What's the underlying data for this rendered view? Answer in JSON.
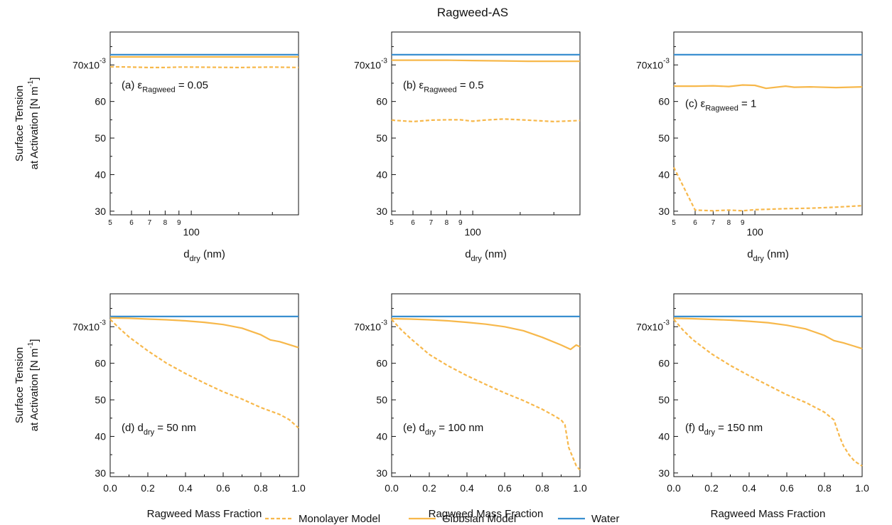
{
  "figure": {
    "title": "Ragweed-AS",
    "y_label_line1": "Surface Tension",
    "y_label_line2": "at Activation [N m",
    "y_label_sup": "-1",
    "y_label_close": "]",
    "y_exp_prefix": "70x10",
    "y_exp_sup": "-3"
  },
  "legend": {
    "monolayer": "Monolayer Model",
    "gibbsian": "Gibbsian Model",
    "water": "Water"
  },
  "colors": {
    "orange": "#F7B84B",
    "blue": "#3A8FD0",
    "axis": "#111111"
  },
  "chart_data": [
    {
      "type": "line",
      "panel": "a",
      "annotation": {
        "prefix": "(a) ",
        "sym": "ε",
        "sub": "Ragweed",
        "suffix": " = 0.05"
      },
      "xlabel": {
        "main": "d",
        "sub": "dry",
        "suffix": " (nm)"
      },
      "xscale": "log",
      "xlim": [
        50,
        250
      ],
      "ylim": [
        29,
        79
      ],
      "yticks": [
        30,
        40,
        50,
        60,
        70
      ],
      "ytick_labels": [
        "30",
        "40",
        "50",
        "60",
        "70x10-3"
      ],
      "xticks": [
        50,
        60,
        70,
        80,
        90,
        100
      ],
      "xtick_labels": [
        "5",
        "6",
        "7",
        "8",
        "9",
        "100"
      ],
      "series": [
        {
          "name": "Water",
          "style": "solid",
          "color": "#3A8FD0",
          "x": [
            50,
            250
          ],
          "y": [
            72.8,
            72.8
          ]
        },
        {
          "name": "Gibbsian Model",
          "style": "solid",
          "color": "#F7B84B",
          "x": [
            50,
            100,
            150,
            200,
            250
          ],
          "y": [
            72.2,
            72.2,
            72.2,
            72.2,
            72.2
          ]
        },
        {
          "name": "Monolayer Model",
          "style": "dashed",
          "color": "#F7B84B",
          "x": [
            50,
            60,
            70,
            80,
            90,
            100,
            150,
            200,
            250
          ],
          "y": [
            69.5,
            69.4,
            69.3,
            69.3,
            69.4,
            69.4,
            69.3,
            69.4,
            69.3
          ]
        }
      ]
    },
    {
      "type": "line",
      "panel": "b",
      "annotation": {
        "prefix": "(b) ",
        "sym": "ε",
        "sub": "Ragweed",
        "suffix": " = 0.5"
      },
      "xlabel": {
        "main": "d",
        "sub": "dry",
        "suffix": " (nm)"
      },
      "xscale": "log",
      "xlim": [
        50,
        250
      ],
      "ylim": [
        29,
        79
      ],
      "yticks": [
        30,
        40,
        50,
        60,
        70
      ],
      "ytick_labels": [
        "30",
        "40",
        "50",
        "60",
        "70x10-3"
      ],
      "xticks": [
        50,
        60,
        70,
        80,
        90,
        100
      ],
      "xtick_labels": [
        "5",
        "6",
        "7",
        "8",
        "9",
        "100"
      ],
      "series": [
        {
          "name": "Water",
          "style": "solid",
          "color": "#3A8FD0",
          "x": [
            50,
            250
          ],
          "y": [
            72.8,
            72.8
          ]
        },
        {
          "name": "Gibbsian Model",
          "style": "solid",
          "color": "#F7B84B",
          "x": [
            50,
            80,
            100,
            130,
            160,
            200,
            250
          ],
          "y": [
            71.3,
            71.3,
            71.2,
            71.1,
            71.0,
            71.0,
            71.0
          ]
        },
        {
          "name": "Monolayer Model",
          "style": "dashed",
          "color": "#F7B84B",
          "x": [
            50,
            60,
            70,
            80,
            90,
            100,
            110,
            130,
            160,
            200,
            250
          ],
          "y": [
            54.9,
            54.5,
            54.9,
            55.0,
            55.0,
            54.6,
            54.9,
            55.2,
            54.9,
            54.5,
            54.8
          ]
        }
      ]
    },
    {
      "type": "line",
      "panel": "c",
      "annotation": {
        "prefix": "(c) ",
        "sym": "ε",
        "sub": "Ragweed",
        "suffix": " = 1"
      },
      "xlabel": {
        "main": "d",
        "sub": "dry",
        "suffix": " (nm)"
      },
      "xscale": "log",
      "xlim": [
        50,
        250
      ],
      "ylim": [
        29,
        79
      ],
      "yticks": [
        30,
        40,
        50,
        60,
        70
      ],
      "ytick_labels": [
        "30",
        "40",
        "50",
        "60",
        "70x10-3"
      ],
      "xticks": [
        50,
        60,
        70,
        80,
        90,
        100
      ],
      "xtick_labels": [
        "5",
        "6",
        "7",
        "8",
        "9",
        "100"
      ],
      "series": [
        {
          "name": "Water",
          "style": "solid",
          "color": "#3A8FD0",
          "x": [
            50,
            250
          ],
          "y": [
            72.8,
            72.8
          ]
        },
        {
          "name": "Gibbsian Model",
          "style": "solid",
          "color": "#F7B84B",
          "x": [
            50,
            60,
            70,
            80,
            90,
            100,
            110,
            130,
            140,
            160,
            200,
            250
          ],
          "y": [
            64.2,
            64.2,
            64.3,
            64.1,
            64.5,
            64.4,
            63.6,
            64.2,
            63.9,
            64.0,
            63.8,
            64.0
          ]
        },
        {
          "name": "Monolayer Model",
          "style": "dashed",
          "color": "#F7B84B",
          "x": [
            50,
            60,
            70,
            80,
            90,
            100,
            130,
            160,
            200,
            250
          ],
          "y": [
            42.0,
            30.3,
            30.1,
            30.3,
            30.1,
            30.4,
            30.7,
            30.8,
            31.1,
            31.5
          ]
        }
      ]
    },
    {
      "type": "line",
      "panel": "d",
      "annotation": {
        "prefix": "(d) ",
        "main": "d",
        "sub": "dry",
        "suffix": " = 50 nm"
      },
      "xlabel": {
        "main": "Ragweed Mass Fraction",
        "sub": "",
        "suffix": ""
      },
      "xscale": "linear",
      "xlim": [
        0,
        1
      ],
      "ylim": [
        29,
        79
      ],
      "yticks": [
        30,
        40,
        50,
        60,
        70
      ],
      "ytick_labels": [
        "30",
        "40",
        "50",
        "60",
        "70x10-3"
      ],
      "xticks": [
        0,
        0.2,
        0.4,
        0.6,
        0.8,
        1.0
      ],
      "xtick_labels": [
        "0.0",
        "0.2",
        "0.4",
        "0.6",
        "0.8",
        "1.0"
      ],
      "series": [
        {
          "name": "Water",
          "style": "solid",
          "color": "#3A8FD0",
          "x": [
            0,
            1
          ],
          "y": [
            72.8,
            72.8
          ]
        },
        {
          "name": "Gibbsian Model",
          "style": "solid",
          "color": "#F7B84B",
          "x": [
            0,
            0.1,
            0.2,
            0.3,
            0.4,
            0.5,
            0.6,
            0.7,
            0.8,
            0.85,
            0.9,
            0.95,
            1.0
          ],
          "y": [
            72.4,
            72.3,
            72.1,
            71.9,
            71.6,
            71.2,
            70.6,
            69.6,
            67.8,
            66.4,
            65.9,
            65.1,
            64.3
          ]
        },
        {
          "name": "Monolayer Model",
          "style": "dashed",
          "color": "#F7B84B",
          "x": [
            0,
            0.05,
            0.1,
            0.2,
            0.3,
            0.4,
            0.5,
            0.6,
            0.7,
            0.8,
            0.9,
            0.95,
            1.0
          ],
          "y": [
            72.0,
            69.5,
            67.2,
            63.4,
            60.0,
            57.2,
            54.6,
            52.2,
            50.2,
            47.9,
            46.0,
            44.6,
            42.3
          ]
        }
      ]
    },
    {
      "type": "line",
      "panel": "e",
      "annotation": {
        "prefix": "(e) ",
        "main": "d",
        "sub": "dry",
        "suffix": " = 100 nm"
      },
      "xlabel": {
        "main": "Ragweed Mass Fraction",
        "sub": "",
        "suffix": ""
      },
      "xscale": "linear",
      "xlim": [
        0,
        1
      ],
      "ylim": [
        29,
        79
      ],
      "yticks": [
        30,
        40,
        50,
        60,
        70
      ],
      "ytick_labels": [
        "30",
        "40",
        "50",
        "60",
        "70x10-3"
      ],
      "xticks": [
        0,
        0.2,
        0.4,
        0.6,
        0.8,
        1.0
      ],
      "xtick_labels": [
        "0.0",
        "0.2",
        "0.4",
        "0.6",
        "0.8",
        "1.0"
      ],
      "series": [
        {
          "name": "Water",
          "style": "solid",
          "color": "#3A8FD0",
          "x": [
            0,
            1
          ],
          "y": [
            72.8,
            72.8
          ]
        },
        {
          "name": "Gibbsian Model",
          "style": "solid",
          "color": "#F7B84B",
          "x": [
            0,
            0.1,
            0.2,
            0.3,
            0.4,
            0.5,
            0.6,
            0.7,
            0.8,
            0.9,
            0.95,
            0.98,
            1.0
          ],
          "y": [
            72.2,
            72.1,
            71.9,
            71.6,
            71.2,
            70.7,
            70.0,
            68.9,
            67.1,
            65.0,
            63.8,
            65.0,
            64.5
          ]
        },
        {
          "name": "Monolayer Model",
          "style": "dashed",
          "color": "#F7B84B",
          "x": [
            0,
            0.05,
            0.1,
            0.2,
            0.3,
            0.4,
            0.5,
            0.6,
            0.7,
            0.8,
            0.85,
            0.9,
            0.92,
            0.94,
            0.96,
            0.98,
            1.0
          ],
          "y": [
            72.0,
            69.2,
            66.8,
            62.4,
            59.3,
            56.6,
            54.2,
            51.9,
            49.8,
            47.4,
            46.0,
            44.5,
            43.2,
            37.0,
            34.5,
            32.0,
            30.8
          ]
        }
      ]
    },
    {
      "type": "line",
      "panel": "f",
      "annotation": {
        "prefix": "(f) ",
        "main": "d",
        "sub": "dry",
        "suffix": " = 150 nm"
      },
      "xlabel": {
        "main": "Ragweed Mass Fraction",
        "sub": "",
        "suffix": ""
      },
      "xscale": "linear",
      "xlim": [
        0,
        1
      ],
      "ylim": [
        29,
        79
      ],
      "yticks": [
        30,
        40,
        50,
        60,
        70
      ],
      "ytick_labels": [
        "30",
        "40",
        "50",
        "60",
        "70x10-3"
      ],
      "xticks": [
        0,
        0.2,
        0.4,
        0.6,
        0.8,
        1.0
      ],
      "xtick_labels": [
        "0.0",
        "0.2",
        "0.4",
        "0.6",
        "0.8",
        "1.0"
      ],
      "series": [
        {
          "name": "Water",
          "style": "solid",
          "color": "#3A8FD0",
          "x": [
            0,
            1
          ],
          "y": [
            72.8,
            72.8
          ]
        },
        {
          "name": "Gibbsian Model",
          "style": "solid",
          "color": "#F7B84B",
          "x": [
            0,
            0.1,
            0.2,
            0.3,
            0.4,
            0.5,
            0.6,
            0.7,
            0.8,
            0.85,
            0.9,
            0.95,
            1.0
          ],
          "y": [
            72.3,
            72.2,
            72.0,
            71.8,
            71.5,
            71.1,
            70.4,
            69.4,
            67.6,
            66.2,
            65.6,
            64.8,
            64.0
          ]
        },
        {
          "name": "Monolayer Model",
          "style": "dashed",
          "color": "#F7B84B",
          "x": [
            0,
            0.05,
            0.1,
            0.2,
            0.3,
            0.4,
            0.5,
            0.6,
            0.7,
            0.8,
            0.85,
            0.88,
            0.9,
            0.93,
            0.96,
            1.0
          ],
          "y": [
            72.0,
            69.0,
            66.5,
            62.6,
            59.4,
            56.6,
            54.0,
            51.4,
            49.3,
            46.6,
            44.5,
            40.0,
            37.5,
            35.0,
            33.2,
            31.9
          ]
        }
      ]
    }
  ]
}
